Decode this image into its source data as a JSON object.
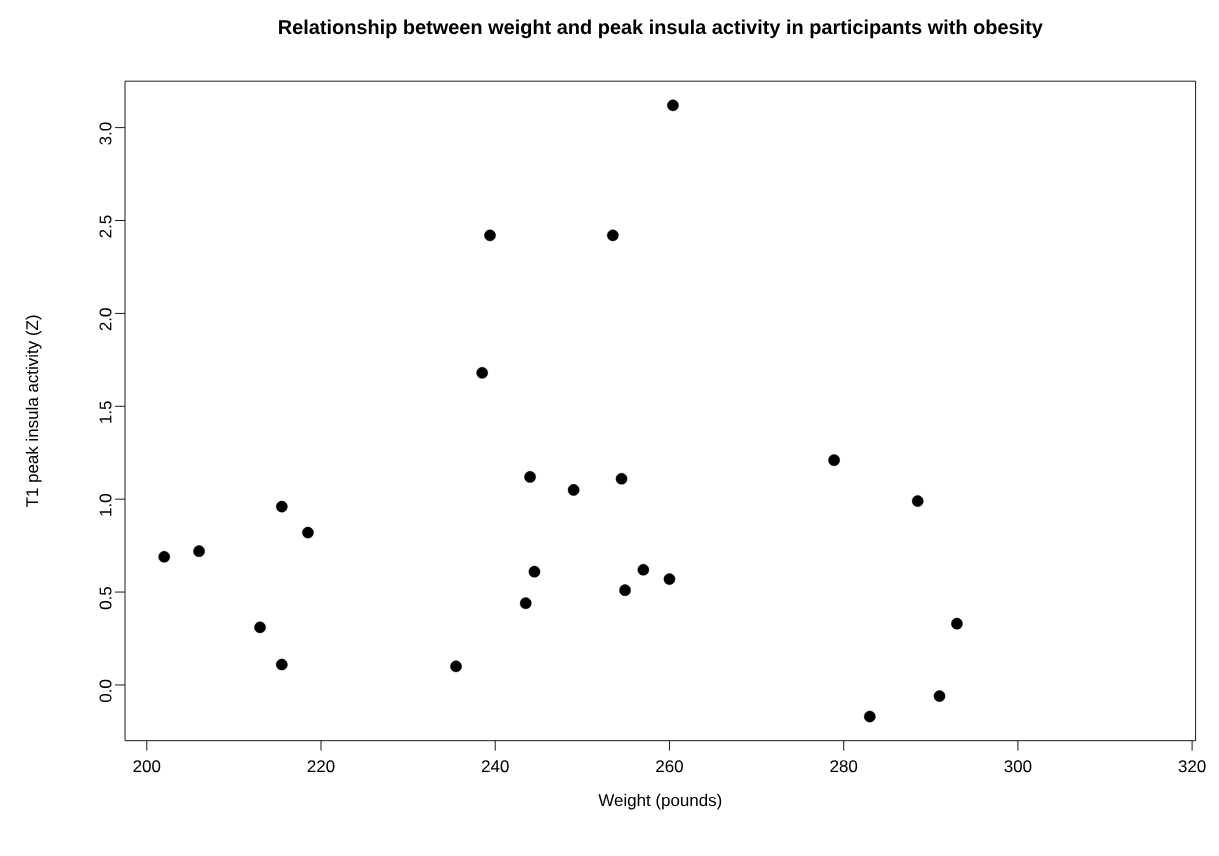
{
  "chart_data": {
    "type": "scatter",
    "title": "Relationship between weight and peak insula activity in participants with obesity",
    "xlabel": "Weight (pounds)",
    "ylabel": "T1 peak insula activity (Z)",
    "x": [
      202.0,
      206.0,
      213.0,
      215.5,
      215.5,
      218.5,
      235.5,
      238.5,
      239.4,
      260.4,
      253.5,
      244.0,
      249.0,
      254.5,
      278.9,
      244.5,
      243.5,
      257.0,
      254.9,
      260.0,
      288.5,
      293.0,
      291.0,
      283.0
    ],
    "values": [
      0.69,
      0.72,
      0.31,
      0.11,
      0.96,
      0.82,
      0.1,
      1.68,
      2.42,
      3.12,
      2.42,
      1.12,
      1.05,
      1.11,
      1.21,
      0.61,
      0.44,
      0.62,
      0.51,
      0.57,
      0.99,
      0.33,
      -0.06,
      -0.17
    ],
    "color": "#000000",
    "marker": "circle",
    "xlim": [
      197.5,
      320.4
    ],
    "ylim": [
      -0.3,
      3.25
    ],
    "xticks": [
      200,
      220,
      240,
      260,
      280,
      300,
      320
    ],
    "yticks": [
      {
        "value": 0,
        "label": "0.0"
      },
      {
        "value": 0.5,
        "label": "0.5"
      },
      {
        "value": 1,
        "label": "1.0"
      },
      {
        "value": 1.5,
        "label": "1.5"
      },
      {
        "value": 2,
        "label": "2.0"
      },
      {
        "value": 2.5,
        "label": "2.5"
      },
      {
        "value": 3,
        "label": "3.0"
      }
    ]
  }
}
